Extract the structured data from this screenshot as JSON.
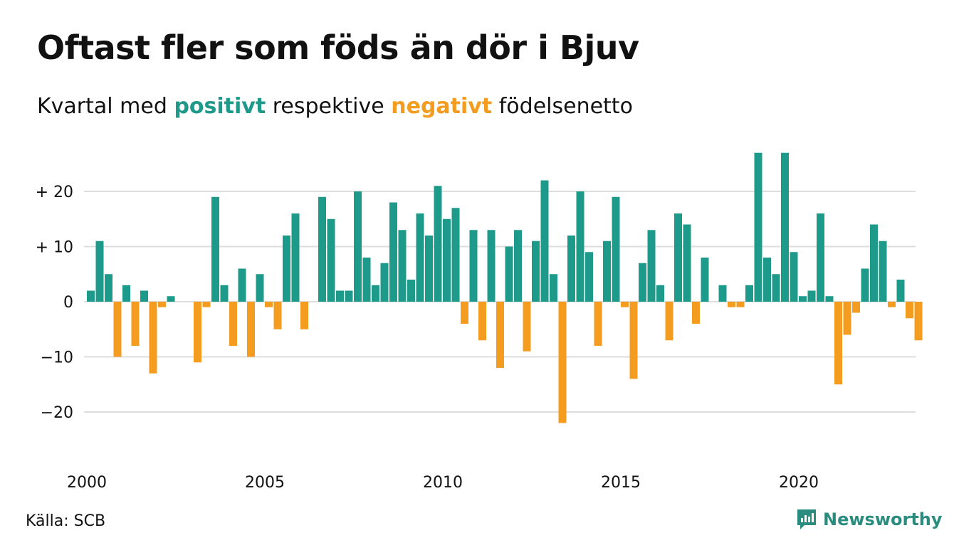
{
  "title": "Oftast fler som föds än dör i Bjuv",
  "subtitle": {
    "prefix": "Kvartal med",
    "positive": "positivt",
    "middle": "respektive",
    "negative": "negativt",
    "suffix": "födelsenetto"
  },
  "source": "Källa: SCB",
  "brand": {
    "name": "Newsworthy",
    "icon": "newsworthy-logo-icon"
  },
  "colors": {
    "positive": "#1e9a8a",
    "negative": "#f39c1f",
    "grid": "#dddddd"
  },
  "chart_data": {
    "type": "bar",
    "xlabel": "",
    "ylabel": "",
    "ylim": [
      -27,
      27
    ],
    "grid": true,
    "y_ticks": [
      {
        "value": 20,
        "label": "+ 20"
      },
      {
        "value": 10,
        "label": "+ 10"
      },
      {
        "value": 0,
        "label": "0"
      },
      {
        "value": -10,
        "label": "−10"
      },
      {
        "value": -20,
        "label": "−20"
      }
    ],
    "x_ticks": [
      "2000",
      "2005",
      "2010",
      "2015",
      "2020"
    ],
    "start_year": 2000,
    "values": [
      2,
      11,
      5,
      -10,
      3,
      -8,
      2,
      -13,
      -1,
      1,
      0,
      0,
      -11,
      -1,
      19,
      3,
      -8,
      6,
      -10,
      5,
      -1,
      -5,
      12,
      16,
      -5,
      0,
      19,
      15,
      2,
      2,
      20,
      8,
      3,
      7,
      18,
      13,
      4,
      16,
      12,
      21,
      15,
      17,
      -4,
      13,
      -7,
      13,
      -12,
      10,
      13,
      -9,
      11,
      22,
      5,
      -22,
      12,
      20,
      9,
      -8,
      11,
      19,
      -1,
      -14,
      7,
      13,
      3,
      -7,
      16,
      14,
      -4,
      8,
      0,
      3,
      -1,
      -1,
      3,
      27,
      8,
      5,
      27,
      9,
      1,
      2,
      16,
      1,
      -15,
      -6,
      -2,
      6,
      14,
      11,
      -1,
      4,
      -3,
      -7
    ]
  }
}
